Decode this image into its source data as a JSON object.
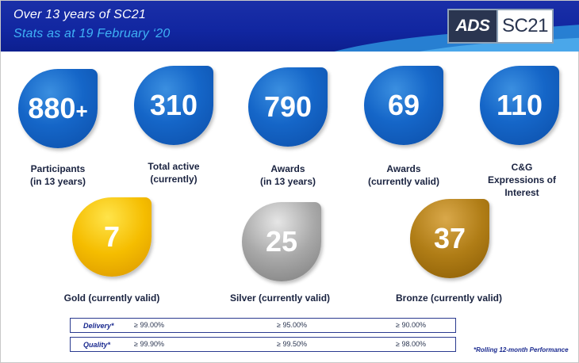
{
  "header": {
    "title": "Over 13 years of SC21",
    "subtitle": "Stats as at 19 February ‘20",
    "logo": {
      "left": "ADS",
      "right": "SC21"
    }
  },
  "stats": [
    {
      "value": "880",
      "suffix": "+",
      "label_line1": "Participants",
      "label_line2": "(in 13 years)",
      "color": "blue"
    },
    {
      "value": "310",
      "suffix": "",
      "label_line1": "Total active",
      "label_line2": "(currently)",
      "color": "blue"
    },
    {
      "value": "790",
      "suffix": "",
      "label_line1": "Awards",
      "label_line2": "(in 13 years)",
      "color": "blue"
    },
    {
      "value": "69",
      "suffix": "",
      "label_line1": "Awards",
      "label_line2": "(currently valid)",
      "color": "blue"
    },
    {
      "value": "110",
      "suffix": "",
      "label_line1": "C&G",
      "label_line2": "Expressions of",
      "label_line3": "Interest",
      "color": "blue"
    }
  ],
  "awards": [
    {
      "value": "7",
      "label": "Gold (currently valid)",
      "color": "#f5bd00"
    },
    {
      "value": "25",
      "label": "Silver (currently valid)",
      "color": "#a8a8a8"
    },
    {
      "value": "37",
      "label": "Bronze (currently valid)",
      "color": "#b07d16"
    }
  ],
  "performance": {
    "rows": [
      {
        "label": "Delivery*",
        "gold": "≥ 99.00%",
        "silver": "≥ 95.00%",
        "bronze": "≥ 90.00%"
      },
      {
        "label": "Quality*",
        "gold": "≥ 99.90%",
        "silver": "≥ 99.50%",
        "bronze": "≥ 98.00%"
      }
    ],
    "footnote": "*Rolling 12-month Performance"
  }
}
